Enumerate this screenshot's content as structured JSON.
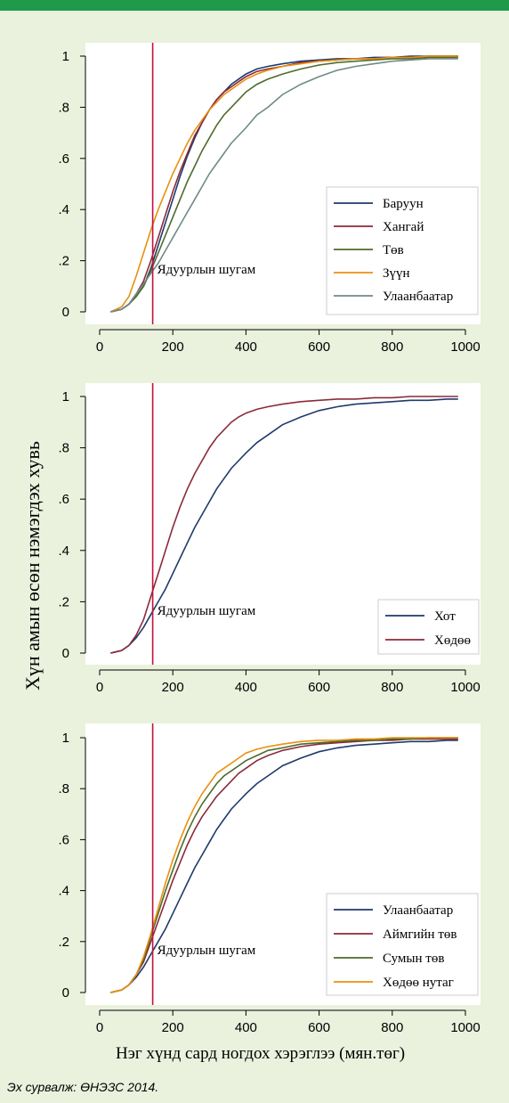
{
  "y_axis_title": "Хүн амын өсөн нэмэгдэх хувь",
  "x_axis_title": "Нэг хүнд сард ногдох хэрэглээ (мян.төг)",
  "source_note": "Эх сурвалж: ӨНЭЗС 2014.",
  "colors": {
    "background": "#eaf1dd",
    "top_bar": "#1f9a4a",
    "poverty_line": "#c0143c",
    "navy": "#1f3a6b",
    "maroon": "#8b2a3a",
    "olive": "#4e6b2a",
    "orange": "#e8900f",
    "gray_teal": "#6f8a88"
  },
  "chart_data": [
    {
      "type": "line",
      "x_ticks": [
        "0",
        "200",
        "400",
        "600",
        "800",
        "1000"
      ],
      "y_ticks": [
        "0",
        ".2",
        ".4",
        ".6",
        ".8",
        "1"
      ],
      "xlim": [
        0,
        1000
      ],
      "ylim": [
        0,
        1
      ],
      "poverty_line": {
        "x": 145,
        "label": "Ядуурлын шугам"
      },
      "legend_position": "bottom-right",
      "series": [
        {
          "name": "Баруун",
          "color": "#1f3a6b",
          "x": [
            30,
            60,
            80,
            100,
            120,
            140,
            160,
            180,
            200,
            220,
            240,
            260,
            280,
            300,
            320,
            340,
            360,
            380,
            400,
            430,
            460,
            500,
            550,
            600,
            650,
            700,
            750,
            800,
            850,
            900,
            950,
            980
          ],
          "y": [
            0,
            0.01,
            0.03,
            0.06,
            0.1,
            0.17,
            0.26,
            0.35,
            0.44,
            0.53,
            0.61,
            0.68,
            0.74,
            0.79,
            0.83,
            0.86,
            0.89,
            0.91,
            0.93,
            0.95,
            0.96,
            0.97,
            0.98,
            0.985,
            0.99,
            0.99,
            0.995,
            0.995,
            1,
            1,
            1,
            1
          ]
        },
        {
          "name": "Хангай",
          "color": "#8b2a3a",
          "x": [
            30,
            60,
            80,
            100,
            120,
            140,
            160,
            180,
            200,
            220,
            240,
            260,
            280,
            300,
            320,
            340,
            360,
            380,
            400,
            430,
            460,
            500,
            550,
            600,
            650,
            700,
            750,
            800,
            850,
            900,
            950,
            980
          ],
          "y": [
            0,
            0.01,
            0.03,
            0.07,
            0.12,
            0.2,
            0.29,
            0.38,
            0.47,
            0.55,
            0.62,
            0.69,
            0.74,
            0.79,
            0.83,
            0.86,
            0.88,
            0.9,
            0.92,
            0.94,
            0.95,
            0.96,
            0.975,
            0.98,
            0.985,
            0.99,
            0.99,
            0.995,
            0.995,
            1,
            1,
            1
          ]
        },
        {
          "name": "Төв",
          "color": "#4e6b2a",
          "x": [
            30,
            60,
            80,
            100,
            120,
            140,
            160,
            180,
            200,
            220,
            240,
            260,
            280,
            300,
            320,
            340,
            360,
            380,
            400,
            430,
            460,
            500,
            550,
            600,
            650,
            700,
            750,
            800,
            850,
            900,
            950,
            980
          ],
          "y": [
            0,
            0.01,
            0.03,
            0.06,
            0.1,
            0.16,
            0.23,
            0.3,
            0.37,
            0.44,
            0.51,
            0.57,
            0.63,
            0.68,
            0.73,
            0.77,
            0.8,
            0.83,
            0.86,
            0.89,
            0.91,
            0.93,
            0.95,
            0.965,
            0.975,
            0.98,
            0.985,
            0.99,
            0.99,
            0.995,
            0.995,
            0.995
          ]
        },
        {
          "name": "Зүүн",
          "color": "#e8900f",
          "x": [
            30,
            60,
            80,
            100,
            120,
            140,
            160,
            180,
            200,
            220,
            240,
            260,
            280,
            300,
            320,
            340,
            360,
            380,
            400,
            430,
            460,
            500,
            550,
            600,
            650,
            700,
            750,
            800,
            850,
            900,
            950,
            980
          ],
          "y": [
            0,
            0.02,
            0.06,
            0.14,
            0.23,
            0.32,
            0.4,
            0.47,
            0.54,
            0.6,
            0.66,
            0.71,
            0.75,
            0.79,
            0.82,
            0.85,
            0.87,
            0.89,
            0.91,
            0.93,
            0.945,
            0.96,
            0.97,
            0.98,
            0.985,
            0.99,
            0.99,
            0.995,
            0.995,
            1,
            1,
            1
          ]
        },
        {
          "name": "Улаанбаатар",
          "color": "#6f8a88",
          "x": [
            30,
            60,
            80,
            100,
            120,
            140,
            160,
            180,
            200,
            220,
            240,
            260,
            280,
            300,
            320,
            340,
            360,
            380,
            400,
            430,
            460,
            500,
            550,
            600,
            650,
            700,
            750,
            800,
            850,
            900,
            950,
            980
          ],
          "y": [
            0,
            0.01,
            0.03,
            0.07,
            0.11,
            0.15,
            0.19,
            0.24,
            0.29,
            0.34,
            0.39,
            0.44,
            0.49,
            0.54,
            0.58,
            0.62,
            0.66,
            0.69,
            0.72,
            0.77,
            0.8,
            0.85,
            0.89,
            0.92,
            0.945,
            0.96,
            0.97,
            0.98,
            0.985,
            0.99,
            0.99,
            0.99
          ]
        }
      ]
    },
    {
      "type": "line",
      "x_ticks": [
        "0",
        "200",
        "400",
        "600",
        "800",
        "1000"
      ],
      "y_ticks": [
        "0",
        ".2",
        ".4",
        ".6",
        ".8",
        "1"
      ],
      "xlim": [
        0,
        1000
      ],
      "ylim": [
        0,
        1
      ],
      "poverty_line": {
        "x": 145,
        "label": "Ядуурлын шугам"
      },
      "legend_position": "bottom-right",
      "series": [
        {
          "name": "Хот",
          "color": "#1f3a6b",
          "x": [
            30,
            60,
            80,
            100,
            120,
            140,
            160,
            180,
            200,
            220,
            240,
            260,
            280,
            300,
            320,
            340,
            360,
            380,
            400,
            430,
            460,
            500,
            550,
            600,
            650,
            700,
            750,
            800,
            850,
            900,
            950,
            980
          ],
          "y": [
            0,
            0.01,
            0.03,
            0.06,
            0.1,
            0.15,
            0.2,
            0.25,
            0.31,
            0.37,
            0.43,
            0.49,
            0.54,
            0.59,
            0.64,
            0.68,
            0.72,
            0.75,
            0.78,
            0.82,
            0.85,
            0.89,
            0.92,
            0.945,
            0.96,
            0.97,
            0.975,
            0.98,
            0.985,
            0.985,
            0.99,
            0.99
          ]
        },
        {
          "name": "Хөдөө",
          "color": "#8b2a3a",
          "x": [
            30,
            60,
            80,
            100,
            120,
            140,
            160,
            180,
            200,
            220,
            240,
            260,
            280,
            300,
            320,
            340,
            360,
            380,
            400,
            430,
            460,
            500,
            550,
            600,
            650,
            700,
            750,
            800,
            850,
            900,
            950,
            980
          ],
          "y": [
            0,
            0.01,
            0.03,
            0.07,
            0.13,
            0.22,
            0.31,
            0.4,
            0.49,
            0.57,
            0.64,
            0.7,
            0.75,
            0.8,
            0.84,
            0.87,
            0.9,
            0.92,
            0.935,
            0.95,
            0.96,
            0.97,
            0.98,
            0.985,
            0.99,
            0.99,
            0.995,
            0.995,
            1,
            1,
            1,
            1
          ]
        }
      ]
    },
    {
      "type": "line",
      "x_ticks": [
        "0",
        "200",
        "400",
        "600",
        "800",
        "1000"
      ],
      "y_ticks": [
        "0",
        ".2",
        ".4",
        ".6",
        ".8",
        "1"
      ],
      "xlim": [
        0,
        1000
      ],
      "ylim": [
        0,
        1
      ],
      "poverty_line": {
        "x": 145,
        "label": "Ядуурлын шугам"
      },
      "legend_position": "bottom-right",
      "series": [
        {
          "name": "Улаанбаатар",
          "color": "#1f3a6b",
          "x": [
            30,
            60,
            80,
            100,
            120,
            140,
            160,
            180,
            200,
            220,
            240,
            260,
            280,
            300,
            320,
            340,
            360,
            380,
            400,
            430,
            460,
            500,
            550,
            600,
            650,
            700,
            750,
            800,
            850,
            900,
            950,
            980
          ],
          "y": [
            0,
            0.01,
            0.03,
            0.06,
            0.1,
            0.15,
            0.2,
            0.25,
            0.31,
            0.37,
            0.43,
            0.49,
            0.54,
            0.59,
            0.64,
            0.68,
            0.72,
            0.75,
            0.78,
            0.82,
            0.85,
            0.89,
            0.92,
            0.945,
            0.96,
            0.97,
            0.975,
            0.98,
            0.985,
            0.985,
            0.99,
            0.99
          ]
        },
        {
          "name": "Аймгийн төв",
          "color": "#8b2a3a",
          "x": [
            30,
            60,
            80,
            100,
            120,
            140,
            160,
            180,
            200,
            220,
            240,
            260,
            280,
            300,
            320,
            340,
            360,
            380,
            400,
            430,
            460,
            500,
            550,
            600,
            650,
            700,
            750,
            800,
            850,
            900,
            950,
            980
          ],
          "y": [
            0,
            0.01,
            0.03,
            0.07,
            0.12,
            0.2,
            0.28,
            0.36,
            0.44,
            0.51,
            0.58,
            0.64,
            0.69,
            0.73,
            0.77,
            0.8,
            0.83,
            0.86,
            0.88,
            0.91,
            0.93,
            0.95,
            0.965,
            0.975,
            0.98,
            0.985,
            0.99,
            0.99,
            0.995,
            0.995,
            0.995,
            0.995
          ]
        },
        {
          "name": "Сумын төв",
          "color": "#4e6b2a",
          "x": [
            30,
            60,
            80,
            100,
            120,
            140,
            160,
            180,
            200,
            220,
            240,
            260,
            280,
            300,
            320,
            340,
            360,
            380,
            400,
            430,
            460,
            500,
            550,
            600,
            650,
            700,
            750,
            800,
            850,
            900,
            950,
            980
          ],
          "y": [
            0,
            0.01,
            0.03,
            0.07,
            0.13,
            0.22,
            0.31,
            0.4,
            0.48,
            0.56,
            0.63,
            0.69,
            0.74,
            0.78,
            0.82,
            0.85,
            0.87,
            0.89,
            0.91,
            0.93,
            0.95,
            0.96,
            0.975,
            0.98,
            0.985,
            0.99,
            0.99,
            0.995,
            0.995,
            1,
            1,
            1
          ]
        },
        {
          "name": "Хөдөө нутаг",
          "color": "#e8900f",
          "x": [
            30,
            60,
            80,
            100,
            120,
            140,
            160,
            180,
            200,
            220,
            240,
            260,
            280,
            300,
            320,
            340,
            360,
            380,
            400,
            430,
            460,
            500,
            550,
            600,
            650,
            700,
            750,
            800,
            850,
            900,
            950,
            980
          ],
          "y": [
            0,
            0.01,
            0.03,
            0.07,
            0.14,
            0.23,
            0.33,
            0.43,
            0.52,
            0.6,
            0.67,
            0.73,
            0.78,
            0.82,
            0.86,
            0.88,
            0.9,
            0.92,
            0.94,
            0.955,
            0.965,
            0.975,
            0.985,
            0.99,
            0.99,
            0.995,
            0.995,
            1,
            1,
            1,
            1,
            1
          ]
        }
      ]
    }
  ]
}
